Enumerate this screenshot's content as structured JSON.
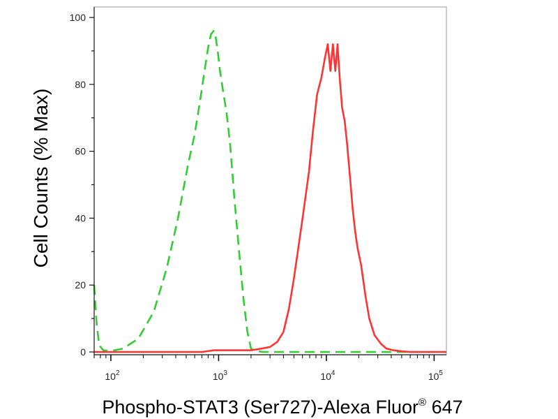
{
  "chart_data": {
    "type": "line",
    "title": "",
    "xlabel": "Phospho-STAT3 (Ser727)-Alexa Fluor",
    "xlabel_sup": "®",
    "xlabel_suffix": " 647",
    "ylabel": "Cell Counts (% Max)",
    "x_scale": "log",
    "xlim": [
      70,
      130000
    ],
    "ylim": [
      0,
      100
    ],
    "grid": false,
    "legend": "none",
    "y_ticks": [
      {
        "value": 0,
        "label": "0"
      },
      {
        "value": 20,
        "label": "20"
      },
      {
        "value": 40,
        "label": "40"
      },
      {
        "value": 60,
        "label": "60"
      },
      {
        "value": 80,
        "label": "80"
      },
      {
        "value": 100,
        "label": "100"
      }
    ],
    "x_ticks": [
      {
        "value": 100,
        "base": "10",
        "exp": "2"
      },
      {
        "value": 1000,
        "base": "10",
        "exp": "3"
      },
      {
        "value": 10000,
        "base": "10",
        "exp": "4"
      },
      {
        "value": 100000,
        "base": "10",
        "exp": "5"
      }
    ],
    "series": [
      {
        "color": "#33cc33",
        "style": "dashed",
        "x": [
          70,
          74,
          78,
          85,
          100,
          130,
          180,
          250,
          330,
          420,
          520,
          600,
          680,
          740,
          800,
          850,
          900,
          940,
          980,
          1030,
          1100,
          1180,
          1280,
          1400,
          1550,
          1700,
          1850,
          2000,
          2200,
          2600,
          3500,
          5000,
          10000,
          30000,
          100000,
          130000
        ],
        "y": [
          20,
          8,
          2,
          0.5,
          0.3,
          1,
          4,
          12,
          25,
          40,
          56,
          65,
          76,
          84,
          91,
          95,
          96,
          94,
          90,
          84,
          78,
          72,
          62,
          46,
          30,
          16,
          6,
          1,
          0.3,
          0,
          0,
          0,
          0,
          0,
          0,
          0
        ]
      },
      {
        "color": "#ff3333",
        "style": "solid",
        "x": [
          70,
          300,
          700,
          900,
          1100,
          1500,
          2000,
          2500,
          3000,
          3500,
          4000,
          4500,
          5000,
          5600,
          6200,
          6900,
          7500,
          8200,
          9000,
          9700,
          10300,
          10900,
          11500,
          12100,
          12700,
          13300,
          14000,
          14800,
          15600,
          16500,
          17500,
          18500,
          19500,
          21000,
          23000,
          25000,
          28000,
          32000,
          36000,
          42000,
          50000,
          60000,
          80000,
          130000
        ],
        "y": [
          0,
          0,
          0,
          0.5,
          0.5,
          0.5,
          0.5,
          1,
          1.5,
          3,
          6,
          13,
          22,
          33,
          43,
          54,
          66,
          77,
          82,
          88,
          92,
          84,
          92,
          84,
          92,
          82,
          73,
          69,
          62,
          53,
          43,
          36,
          31,
          26,
          17,
          10,
          5,
          2.5,
          1,
          0.5,
          0.2,
          0,
          0,
          0
        ]
      }
    ]
  }
}
